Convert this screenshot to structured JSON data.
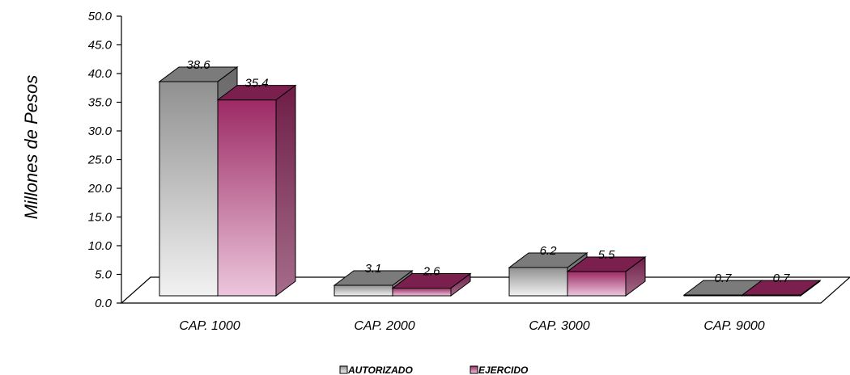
{
  "chart_data": {
    "type": "bar",
    "title": "",
    "xlabel": "",
    "ylabel": "Millones de Pesos",
    "ylim": [
      0,
      50
    ],
    "yticks": [
      "0.0",
      "5.0",
      "10.0",
      "15.0",
      "20.0",
      "25.0",
      "30.0",
      "35.0",
      "40.0",
      "45.0",
      "50.0"
    ],
    "categories": [
      "CAP. 1000",
      "CAP. 2000",
      "CAP. 3000",
      "CAP. 9000"
    ],
    "series": [
      {
        "name": "AUTORIZADO",
        "values": [
          38.6,
          3.1,
          6.2,
          0.7
        ],
        "labels": [
          "38.6",
          "3.1",
          "6.2",
          "0.7"
        ],
        "color": "#8f8f8f"
      },
      {
        "name": "EJERCIDO",
        "values": [
          35.4,
          2.6,
          5.5,
          0.7
        ],
        "labels": [
          "35.4",
          "2.6",
          "5.5",
          "0.7"
        ],
        "color": "#8a2457"
      }
    ],
    "grid": false,
    "three_d": true,
    "legend_position": "bottom-center"
  }
}
